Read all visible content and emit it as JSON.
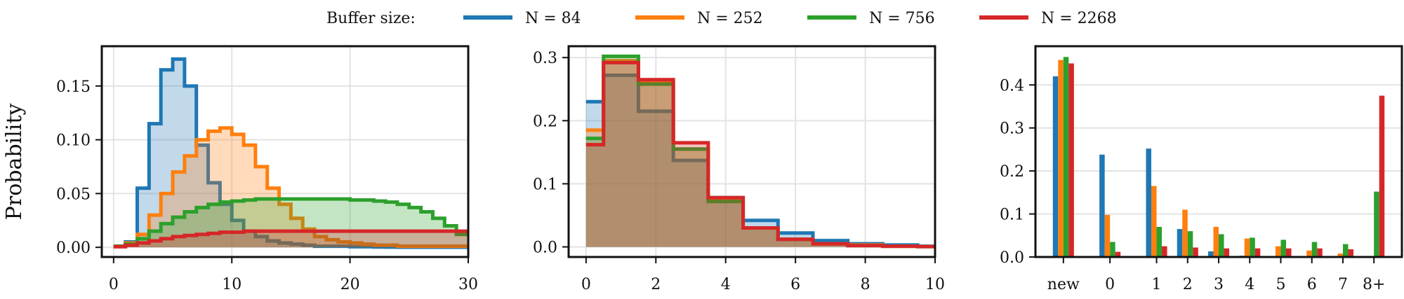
{
  "legend": {
    "title": "Buffer size:",
    "entries": [
      {
        "label": "N = 84",
        "color": "#1f77b4"
      },
      {
        "label": "N = 252",
        "color": "#ff7f0e"
      },
      {
        "label": "N = 756",
        "color": "#2ca02c"
      },
      {
        "label": "N = 2268",
        "color": "#d62728"
      }
    ]
  },
  "chart_data": [
    {
      "type": "area",
      "style": "step histogram (filled, alpha)",
      "ylabel": "Probability",
      "xlim": [
        -1,
        30
      ],
      "ylim": [
        -0.009,
        0.187
      ],
      "xticks": [
        0,
        10,
        20,
        30
      ],
      "yticks": [
        0.0,
        0.05,
        0.1,
        0.15
      ],
      "ytick_labels": [
        "0.00",
        "0.05",
        "0.10",
        "0.15"
      ],
      "grid": true,
      "x_edges": [
        0,
        1,
        2,
        3,
        4,
        5,
        6,
        7,
        8,
        9,
        10,
        11,
        12,
        13,
        14,
        15,
        16,
        17,
        18,
        19,
        20,
        21,
        22,
        23,
        24,
        25,
        26,
        27,
        28,
        29,
        30
      ],
      "series": [
        {
          "name": "N = 84",
          "color": "#1f77b4",
          "values": [
            0.001,
            0.005,
            0.055,
            0.115,
            0.165,
            0.175,
            0.15,
            0.095,
            0.06,
            0.04,
            0.025,
            0.015,
            0.01,
            0.006,
            0.004,
            0.003,
            0.002,
            0.001,
            0.001,
            0.001,
            0.0005,
            0.0005,
            0.0003,
            0.0002,
            0.0001,
            0.0001,
            0.0001,
            0.0001,
            0.0001,
            0.0001
          ]
        },
        {
          "name": "N = 252",
          "color": "#ff7f0e",
          "values": [
            0.001,
            0.004,
            0.012,
            0.03,
            0.05,
            0.07,
            0.085,
            0.1,
            0.108,
            0.111,
            0.105,
            0.095,
            0.075,
            0.055,
            0.04,
            0.027,
            0.017,
            0.01,
            0.007,
            0.005,
            0.004,
            0.003,
            0.002,
            0.002,
            0.001,
            0.001,
            0.001,
            0.001,
            0.001,
            0.001
          ]
        },
        {
          "name": "N = 756",
          "color": "#2ca02c",
          "values": [
            0.001,
            0.003,
            0.008,
            0.015,
            0.022,
            0.028,
            0.033,
            0.037,
            0.04,
            0.042,
            0.043,
            0.044,
            0.045,
            0.045,
            0.045,
            0.045,
            0.045,
            0.045,
            0.045,
            0.045,
            0.044,
            0.044,
            0.043,
            0.042,
            0.04,
            0.037,
            0.033,
            0.027,
            0.02,
            0.012
          ]
        },
        {
          "name": "N = 2268",
          "color": "#d62728",
          "values": [
            0.0005,
            0.002,
            0.004,
            0.006,
            0.008,
            0.01,
            0.011,
            0.012,
            0.013,
            0.014,
            0.014,
            0.015,
            0.015,
            0.015,
            0.015,
            0.015,
            0.015,
            0.015,
            0.015,
            0.015,
            0.015,
            0.015,
            0.015,
            0.015,
            0.015,
            0.015,
            0.015,
            0.015,
            0.015,
            0.015
          ]
        }
      ]
    },
    {
      "type": "area",
      "style": "step histogram (filled, alpha)",
      "xlim": [
        -0.5,
        10
      ],
      "ylim": [
        -0.016,
        0.318
      ],
      "xticks": [
        0,
        2,
        4,
        6,
        8,
        10
      ],
      "yticks": [
        0.0,
        0.1,
        0.2,
        0.3
      ],
      "ytick_labels": [
        "0.0",
        "0.1",
        "0.2",
        "0.3"
      ],
      "grid": true,
      "x_edges": [
        0,
        0.5,
        1.5,
        2.5,
        3.5,
        4.5,
        5.5,
        6.5,
        7.5,
        8.5,
        9.5,
        10
      ],
      "series": [
        {
          "name": "N = 84",
          "color": "#1f77b4",
          "values": [
            0.23,
            0.272,
            0.215,
            0.137,
            0.078,
            0.042,
            0.022,
            0.01,
            0.005,
            0.003,
            0.001
          ]
        },
        {
          "name": "N = 252",
          "color": "#ff7f0e",
          "values": [
            0.185,
            0.295,
            0.262,
            0.155,
            0.075,
            0.03,
            0.012,
            0.005,
            0.003,
            0.001,
            0.0005
          ]
        },
        {
          "name": "N = 756",
          "color": "#2ca02c",
          "values": [
            0.172,
            0.302,
            0.258,
            0.155,
            0.072,
            0.03,
            0.012,
            0.005,
            0.002,
            0.001,
            0.0005
          ]
        },
        {
          "name": "N = 2268",
          "color": "#d62728",
          "values": [
            0.162,
            0.292,
            0.265,
            0.165,
            0.078,
            0.03,
            0.012,
            0.005,
            0.002,
            0.001,
            0.0005
          ]
        }
      ]
    },
    {
      "type": "bar",
      "categories": [
        "new",
        "0",
        "1",
        "2",
        "3",
        "4",
        "5",
        "6",
        "7",
        "8+"
      ],
      "category_positions": [
        -1.5,
        0,
        1.5,
        2.5,
        3.5,
        4.5,
        5.5,
        6.5,
        7.5,
        8.5
      ],
      "xlim": [
        -2.4,
        9.4
      ],
      "ylim": [
        0,
        0.49
      ],
      "yticks": [
        0.0,
        0.1,
        0.2,
        0.3,
        0.4
      ],
      "ytick_labels": [
        "0.0",
        "0.1",
        "0.2",
        "0.3",
        "0.4"
      ],
      "grid": true,
      "series": [
        {
          "name": "N = 84",
          "color": "#1f77b4",
          "values": [
            0.42,
            0.238,
            0.252,
            0.065,
            0.013,
            0.003,
            0.002,
            0.001,
            0.001,
            0.001
          ]
        },
        {
          "name": "N = 252",
          "color": "#ff7f0e",
          "values": [
            0.458,
            0.098,
            0.165,
            0.11,
            0.07,
            0.043,
            0.025,
            0.015,
            0.008,
            0.002
          ]
        },
        {
          "name": "N = 756",
          "color": "#2ca02c",
          "values": [
            0.465,
            0.035,
            0.07,
            0.06,
            0.053,
            0.045,
            0.04,
            0.035,
            0.03,
            0.152
          ]
        },
        {
          "name": "N = 2268",
          "color": "#d62728",
          "values": [
            0.45,
            0.012,
            0.025,
            0.022,
            0.02,
            0.02,
            0.02,
            0.02,
            0.018,
            0.375
          ]
        }
      ]
    }
  ]
}
